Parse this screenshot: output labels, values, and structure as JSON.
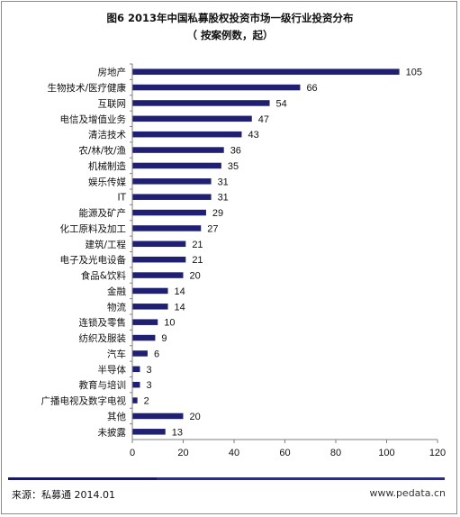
{
  "title": "图6 2013年中国私募股权投资市场一级行业投资分布",
  "subtitle": "（ 按案例数，起）",
  "chart_data": {
    "type": "bar",
    "orientation": "horizontal",
    "categories": [
      "房地产",
      "生物技术/医疗健康",
      "互联网",
      "电信及增值业务",
      "清洁技术",
      "农/林/牧/渔",
      "机械制造",
      "娱乐传媒",
      "IT",
      "能源及矿产",
      "化工原料及加工",
      "建筑/工程",
      "电子及光电设备",
      "食品&饮料",
      "金融",
      "物流",
      "连锁及零售",
      "纺织及服装",
      "汽车",
      "半导体",
      "教育与培训",
      "广播电视及数字电视",
      "其他",
      "未披露"
    ],
    "values": [
      105,
      66,
      54,
      47,
      43,
      36,
      35,
      31,
      31,
      29,
      27,
      21,
      21,
      20,
      14,
      14,
      10,
      9,
      6,
      3,
      3,
      2,
      20,
      13
    ],
    "xlim": [
      0,
      120
    ],
    "xticks": [
      "0",
      "20",
      "40",
      "60",
      "80",
      "100",
      "120"
    ],
    "bar_color": "#1f1f73",
    "grid": false,
    "legend": "none"
  },
  "footer": {
    "source": "来源：私募通  2014.01",
    "website": "www.pedata.cn"
  }
}
